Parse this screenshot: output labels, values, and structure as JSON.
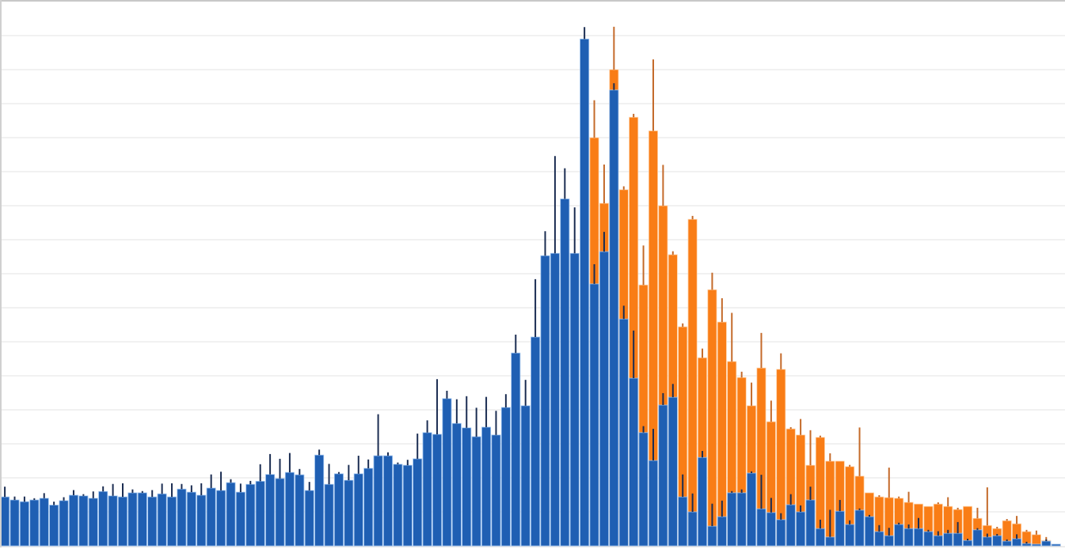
{
  "chart_data": {
    "type": "bar",
    "title": "",
    "xlabel": "",
    "ylabel": "",
    "ylim": [
      0,
      15.5
    ],
    "grid": true,
    "gridlines": [
      1,
      2,
      3,
      4,
      5,
      6,
      7,
      8,
      9,
      10,
      11,
      12,
      13,
      14,
      15
    ],
    "legend": "none",
    "bar_mode": "overlaid",
    "error_bars": true,
    "colors": {
      "blue": "#1f5fb3",
      "orange": "#f97d16",
      "blue_error": "#1b2d52",
      "orange_error": "#c46a2a",
      "grid": "#e3e3e3"
    },
    "series": [
      {
        "color": "#1f5fb3",
        "values": [
          1.44,
          1.35,
          1.3,
          1.35,
          1.4,
          1.2,
          1.33,
          1.49,
          1.47,
          1.4,
          1.6,
          1.47,
          1.44,
          1.56,
          1.56,
          1.44,
          1.53,
          1.44,
          1.67,
          1.58,
          1.49,
          1.7,
          1.63,
          1.86,
          1.58,
          1.81,
          1.9,
          2.1,
          1.98,
          2.16,
          2.09,
          1.63,
          2.67,
          1.81,
          2.12,
          1.93,
          2.12,
          2.28,
          2.65,
          2.65,
          2.4,
          2.37,
          2.56,
          3.33,
          3.28,
          4.33,
          3.6,
          3.47,
          3.21,
          3.49,
          3.26,
          4.07,
          5.67,
          4.12,
          6.14,
          8.53,
          8.6,
          10.2,
          8.6,
          14.9,
          7.7,
          8.65,
          13.4,
          6.67,
          4.93,
          3.33,
          2.51,
          4.14,
          4.37,
          1.44,
          1.0,
          2.6,
          0.58,
          0.86,
          1.56,
          1.56,
          2.14,
          1.09,
          0.98,
          0.77,
          1.21,
          1.0,
          1.35,
          0.51,
          0.26,
          1.02,
          0.63,
          1.05,
          0.86,
          0.42,
          0.3,
          0.63,
          0.51,
          0.51,
          0.42,
          0.3,
          0.37,
          0.37,
          0.16,
          0.47,
          0.26,
          0.3,
          0.14,
          0.21,
          0.07,
          0.05,
          0.14,
          0.05
        ],
        "errors": [
          0.3,
          0.1,
          0.15,
          0.05,
          0.15,
          0.1,
          0.1,
          0.15,
          0.05,
          0.2,
          0.15,
          0.35,
          0.4,
          0.1,
          0.05,
          0.2,
          0.3,
          0.4,
          0.15,
          0.2,
          0.35,
          0.4,
          0.55,
          0.1,
          0.25,
          0.1,
          0.5,
          0.6,
          0.58,
          0.57,
          0.17,
          0.25,
          0.16,
          0.6,
          0.05,
          0.45,
          0.53,
          0.26,
          1.22,
          0.1,
          0.05,
          0.16,
          0.74,
          0.36,
          1.62,
          0.23,
          0.71,
          0.93,
          0.85,
          0.89,
          0.71,
          0.39,
          0.54,
          0.76,
          1.7,
          0.72,
          2.86,
          0.9,
          1.35,
          0.35,
          0.58,
          0.58,
          0.2,
          0.39,
          1.4,
          0.19,
          0.93,
          0.35,
          0.39,
          0.66,
          0.54,
          0.19,
          0.66,
          0.47,
          0.05,
          0.1,
          0.05,
          1.0,
          0.43,
          0.19,
          0.31,
          0.19,
          0.39,
          0.26,
          0.8,
          0.33,
          0.12,
          0.05,
          0.05,
          0.19,
          0.23,
          0.05,
          0.12,
          0.31,
          0.05,
          0.13,
          0.1,
          0.33,
          0.05,
          0.05,
          0.1,
          0.05,
          0.05,
          0.13,
          0.05,
          0,
          0.05,
          0
        ]
      },
      {
        "color": "#f97d16",
        "values": [
          0,
          0,
          0,
          0,
          0,
          0,
          0,
          0,
          0,
          0,
          0,
          0,
          0,
          0,
          0,
          0,
          0,
          0,
          0,
          0,
          0,
          0,
          0,
          0,
          0,
          0,
          0,
          0,
          0,
          0,
          0,
          0,
          0,
          0,
          0,
          0,
          0,
          0,
          0,
          0,
          0,
          0,
          0,
          0,
          0,
          0,
          0,
          0,
          0,
          0,
          0,
          0,
          0,
          0,
          0,
          0,
          0,
          0,
          0,
          0,
          12.0,
          10.07,
          14.0,
          10.47,
          12.6,
          7.67,
          12.2,
          10.0,
          8.56,
          6.44,
          9.6,
          5.53,
          7.53,
          6.58,
          5.42,
          4.95,
          4.12,
          5.23,
          3.65,
          5.19,
          3.44,
          3.26,
          2.37,
          3.19,
          2.49,
          2.49,
          2.33,
          2.05,
          1.56,
          1.44,
          1.42,
          1.4,
          1.28,
          1.23,
          1.16,
          1.23,
          1.16,
          1.07,
          1.16,
          0.81,
          0.6,
          0.51,
          0.74,
          0.65,
          0.42,
          0.33,
          0.16,
          0.05
        ],
        "errors": [
          0,
          0,
          0,
          0,
          0,
          0,
          0,
          0,
          0,
          0,
          0,
          0,
          0,
          0,
          0,
          0,
          0,
          0,
          0,
          0,
          0,
          0,
          0,
          0,
          0,
          0,
          0,
          0,
          0,
          0,
          0,
          0,
          0,
          0,
          0,
          0,
          0,
          0,
          0,
          0,
          0,
          0,
          0,
          0,
          0,
          0,
          0,
          0,
          0,
          0,
          0,
          0,
          0,
          0,
          0,
          0,
          0,
          0,
          0,
          0,
          1.1,
          1.14,
          1.26,
          0.1,
          0.1,
          1.16,
          2.1,
          1.2,
          0.1,
          0.1,
          0.1,
          0.27,
          0.5,
          0.7,
          1.43,
          0.17,
          0.68,
          1.03,
          0.62,
          0.47,
          0.05,
          0.47,
          1.03,
          0.05,
          0.23,
          0,
          0.05,
          1.43,
          0,
          0.05,
          0.88,
          0.05,
          0.31,
          0,
          0,
          0.05,
          0.27,
          0.05,
          0,
          0.31,
          1.12,
          0.05,
          0.05,
          0.23,
          0.05,
          0.12,
          0.1,
          0
        ]
      }
    ]
  }
}
